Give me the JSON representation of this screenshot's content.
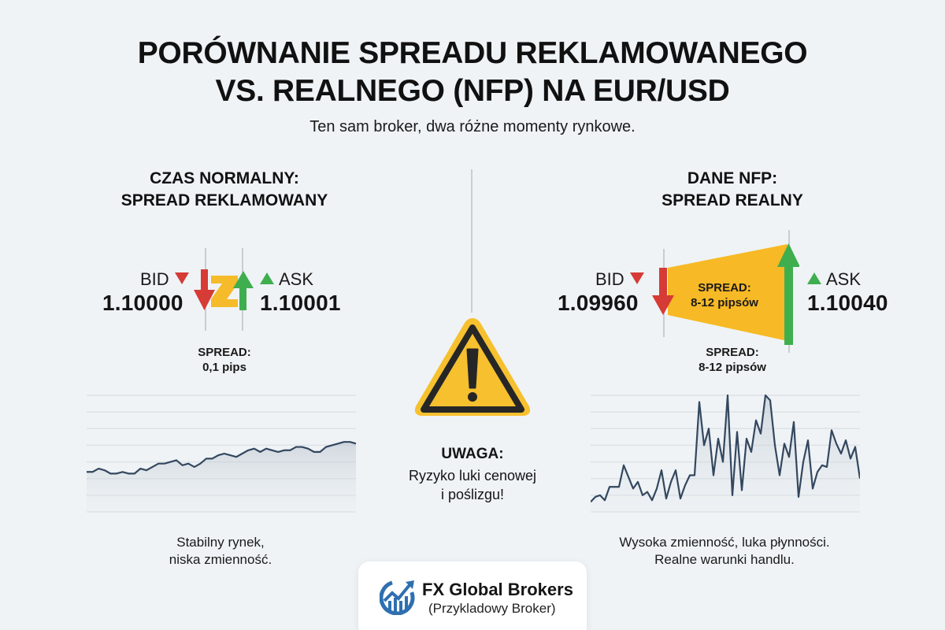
{
  "header": {
    "title_line1": "PORÓWNANIE SPREADU REKLAMOWANEGO",
    "title_line2": "VS. REALNEGO (NFP) NA EUR/USD",
    "subtitle": "Ten sam broker, dwa różne momenty rynkowe."
  },
  "left": {
    "heading_line1": "CZAS NORMALNY:",
    "heading_line2": "SPREAD REKLAMOWANY",
    "bid_label": "BID",
    "bid_price": "1.10000",
    "ask_label": "ASK",
    "ask_price": "1.10001",
    "spread_label": "SPREAD:",
    "spread_value": "0,1 pips",
    "caption_line1": "Stabilny rynek,",
    "caption_line2": "niska zmienność."
  },
  "center": {
    "warning_title": "UWAGA:",
    "warning_line1": "Ryzyko luki cenowej",
    "warning_line2": "i poślizgu!"
  },
  "right": {
    "heading_line1": "DANE NFP:",
    "heading_line2": "SPREAD REALNY",
    "bid_label": "BID",
    "bid_price": "1.09960",
    "ask_label": "ASK",
    "ask_price": "1.10040",
    "inner_spread_label": "SPREAD:",
    "inner_spread_value": "8-12 pipsów",
    "spread_label": "SPREAD:",
    "spread_value": "8-12 pipsów",
    "caption_line1": "Wysoka zmienność, luka płynności.",
    "caption_line2": "Realne warunki handlu."
  },
  "footer": {
    "brand_name": "FX Global Brokers",
    "brand_sub": "(Przykladowy Broker)"
  },
  "colors": {
    "background": "#eff3f6",
    "bid_red": "#d63b36",
    "ask_green": "#3fae4f",
    "spread_yellow": "#f7bd2c",
    "chart_line": "#33475f",
    "warning_yellow": "#f6c02e",
    "warning_border": "#262626",
    "brand_blue": "#2f6fb0"
  },
  "chart_data": [
    {
      "type": "area",
      "title": "Stabilny rynek, niska zmienność.",
      "xlabel": "",
      "ylabel": "",
      "grid": true,
      "ylim": [
        0,
        7
      ],
      "values": [
        2.4,
        2.4,
        2.6,
        2.5,
        2.3,
        2.3,
        2.4,
        2.3,
        2.3,
        2.6,
        2.5,
        2.7,
        2.9,
        2.9,
        3.0,
        3.1,
        2.8,
        2.9,
        2.7,
        2.9,
        3.2,
        3.2,
        3.4,
        3.5,
        3.4,
        3.3,
        3.5,
        3.7,
        3.8,
        3.6,
        3.8,
        3.7,
        3.6,
        3.7,
        3.7,
        3.9,
        3.9,
        3.8,
        3.6,
        3.6,
        3.9,
        4.0,
        4.1,
        4.2,
        4.2,
        4.1
      ]
    },
    {
      "type": "area",
      "title": "Wysoka zmienność, luka płynności. Realne warunki handlu.",
      "xlabel": "",
      "ylabel": "",
      "grid": true,
      "ylim": [
        0,
        7
      ],
      "values": [
        0.6,
        0.9,
        1.0,
        0.7,
        1.5,
        1.5,
        1.5,
        2.8,
        2.1,
        1.4,
        1.8,
        1.0,
        1.2,
        0.7,
        1.4,
        2.5,
        0.8,
        1.8,
        2.5,
        0.8,
        1.6,
        2.2,
        2.2,
        6.6,
        4.0,
        5.0,
        2.2,
        4.4,
        3.0,
        7.0,
        1.0,
        4.8,
        1.3,
        4.4,
        3.6,
        5.5,
        4.7,
        7.0,
        6.7,
        4.0,
        2.2,
        4.1,
        3.3,
        5.4,
        0.9,
        3.0,
        4.3,
        1.4,
        2.4,
        2.8,
        2.7,
        4.9,
        4.1,
        3.5,
        4.3,
        3.2,
        3.9,
        2.0
      ]
    }
  ]
}
